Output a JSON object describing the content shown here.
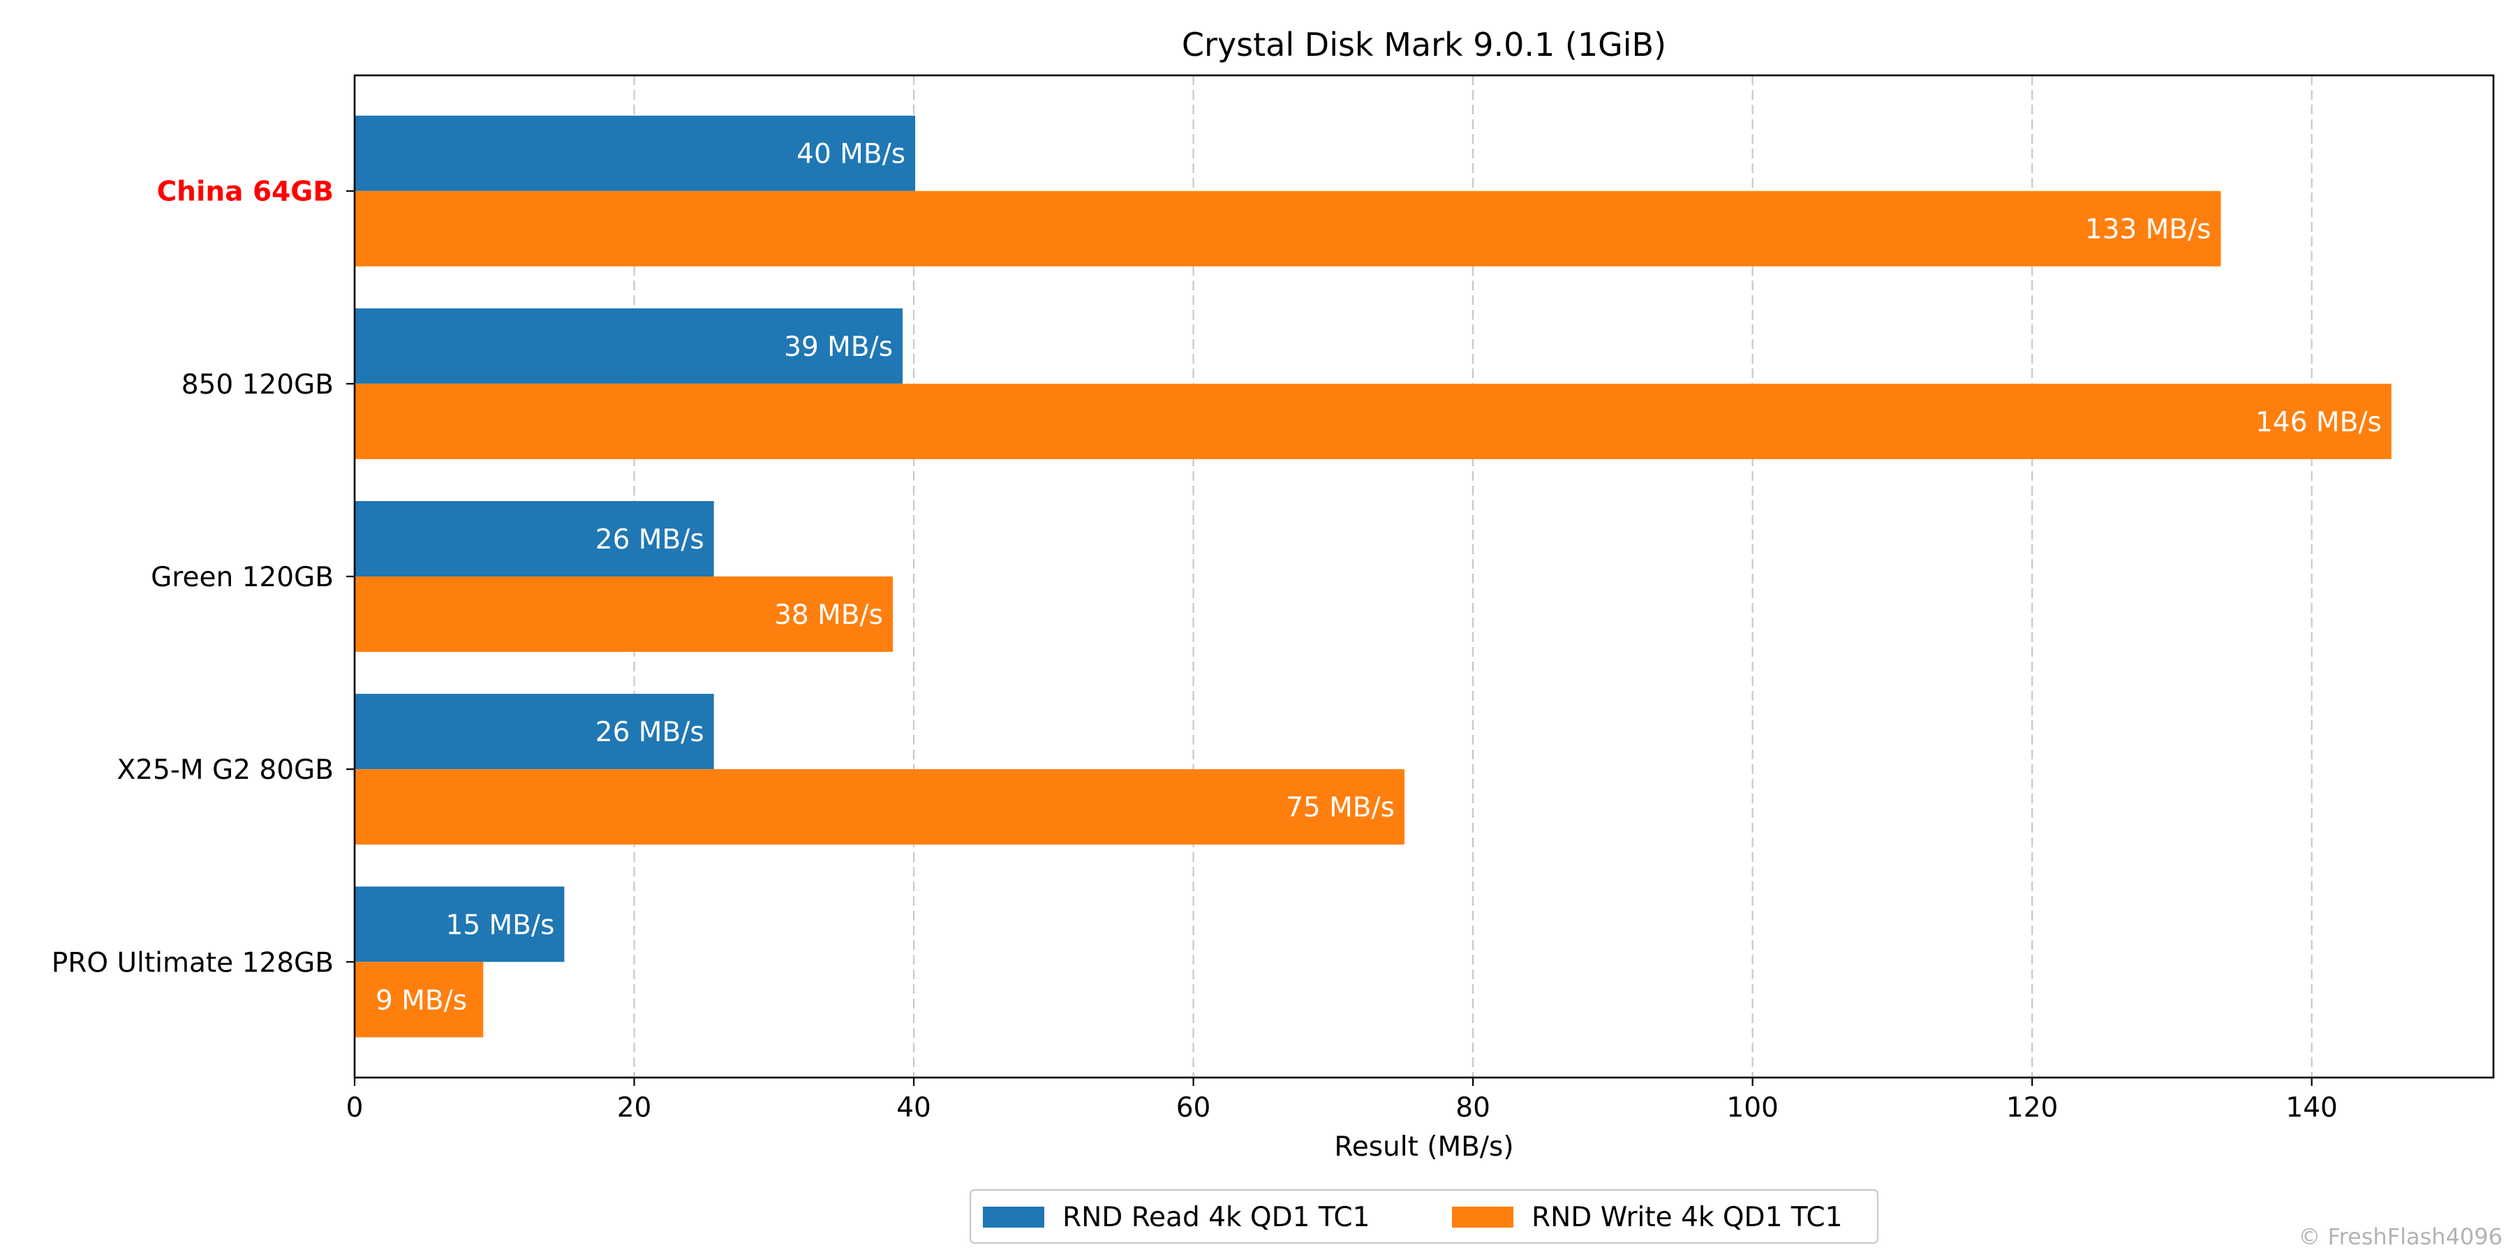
{
  "chart_data": {
    "type": "bar",
    "orientation": "horizontal",
    "title": "Crystal Disk Mark 9.0.1 (1GiB)",
    "xlabel": "Result (MB/s)",
    "ylabel": "",
    "xlim": [
      0,
      153
    ],
    "xticks": [
      0,
      20,
      40,
      60,
      80,
      100,
      120,
      140
    ],
    "grid": "vertical dashed",
    "legend_position": "bottom-center",
    "categories": [
      "China 64GB",
      "850 120GB",
      "Green 120GB",
      "X25-M G2 80GB",
      "PRO Ultimate 128GB"
    ],
    "highlight_category": "China 64GB",
    "highlight_color": "#ff0000",
    "series": [
      {
        "name": "RND Read 4k QD1 TC1",
        "color": "#1f77b4",
        "values": [
          40.1,
          39.2,
          25.7,
          25.7,
          15.0
        ],
        "labels": [
          "40 MB/s",
          "39 MB/s",
          "26 MB/s",
          "26 MB/s",
          "15 MB/s"
        ]
      },
      {
        "name": "RND Write 4k QD1 TC1",
        "color": "#ff7f0e",
        "values": [
          133.5,
          145.7,
          38.5,
          75.1,
          9.2
        ],
        "labels": [
          "133 MB/s",
          "146 MB/s",
          "38 MB/s",
          "75 MB/s",
          "9 MB/s"
        ]
      }
    ]
  },
  "watermark": "© FreshFlash4096"
}
